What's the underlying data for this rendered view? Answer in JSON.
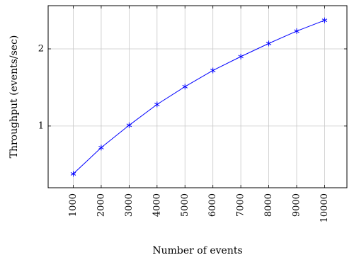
{
  "chart_data": {
    "type": "line",
    "xlabel": "Number of events",
    "ylabel": "Throughput (events/sec)",
    "x": [
      1000,
      2000,
      3000,
      4000,
      5000,
      6000,
      7000,
      8000,
      9000,
      10000
    ],
    "x_tick_labels": [
      "1000",
      "2000",
      "3000",
      "4000",
      "5000",
      "6000",
      "7000",
      "8000",
      "9000",
      "10000"
    ],
    "y_ticks": [
      1,
      2
    ],
    "y_tick_labels": [
      "1",
      "2"
    ],
    "xlim": [
      100,
      10800
    ],
    "ylim": [
      0.2,
      2.56
    ],
    "grid": true,
    "series": [
      {
        "values": [
          0.38,
          0.72,
          1.01,
          1.28,
          1.51,
          1.72,
          1.9,
          2.07,
          2.23,
          2.37
        ],
        "color": "#0000ff",
        "marker": "asterisk"
      }
    ]
  }
}
